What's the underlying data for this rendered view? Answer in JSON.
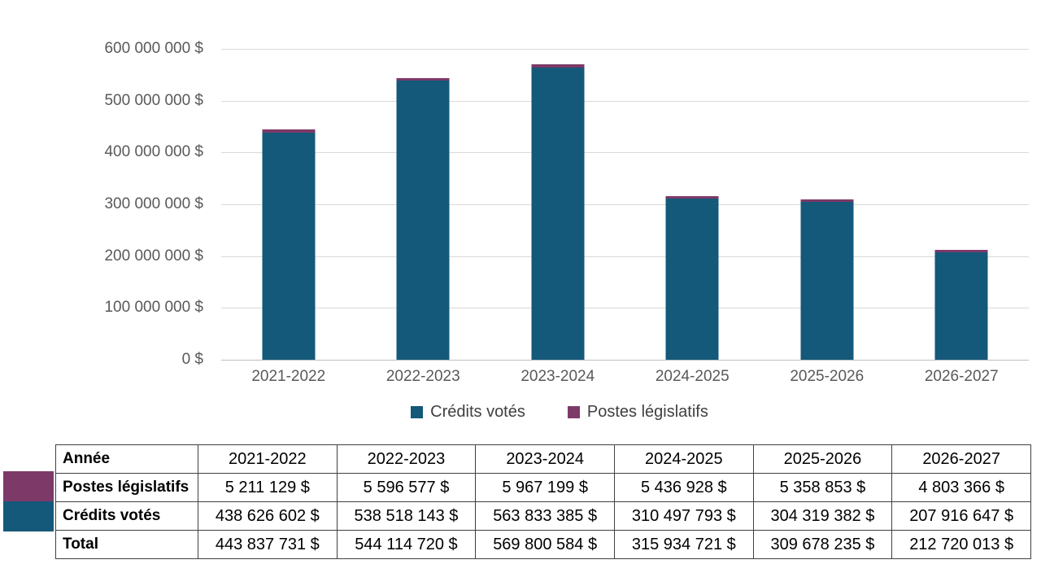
{
  "chart_data": {
    "type": "bar",
    "stacked": true,
    "categories": [
      "2021-2022",
      "2022-2023",
      "2023-2024",
      "2024-2025",
      "2025-2026",
      "2026-2027"
    ],
    "series": [
      {
        "name": "Crédits votés",
        "color": "#14587A",
        "values": [
          438626602,
          538518143,
          563833385,
          310497793,
          304319382,
          207916647
        ]
      },
      {
        "name": "Postes législatifs",
        "color": "#7D3A68",
        "values": [
          5211129,
          5596577,
          5967199,
          5436928,
          5358853,
          4803366
        ]
      }
    ],
    "totals": [
      443837731,
      544114720,
      569800584,
      315934721,
      309678235,
      212720013
    ],
    "ylim": [
      0,
      600000000
    ],
    "ytick_step": 100000000,
    "ytick_labels": [
      "0 $",
      "100 000 000 $",
      "200 000 000 $",
      "300 000 000 $",
      "400 000 000 $",
      "500 000 000 $",
      "600 000 000 $"
    ],
    "grid": true,
    "legend_position": "bottom"
  },
  "table": {
    "header_label": "Année",
    "years": [
      "2021-2022",
      "2022-2023",
      "2023-2024",
      "2024-2025",
      "2025-2026",
      "2026-2027"
    ],
    "rows": [
      {
        "label": "Postes législatifs",
        "swatch": "#7D3A68",
        "values": [
          "5 211 129 $",
          "5 596 577 $",
          "5 967 199 $",
          "5 436 928 $",
          "5 358 853 $",
          "4 803 366 $"
        ]
      },
      {
        "label": "Crédits votés",
        "swatch": "#14587A",
        "values": [
          "438 626 602 $",
          "538 518 143 $",
          "563 833 385 $",
          "310 497 793 $",
          "304 319 382 $",
          "207 916 647 $"
        ]
      },
      {
        "label": "Total",
        "swatch": null,
        "values": [
          "443 837 731 $",
          "544 114 720 $",
          "569 800 584 $",
          "315 934 721 $",
          "309 678 235 $",
          "212 720 013 $"
        ]
      }
    ]
  },
  "colors": {
    "credits_votes": "#14587A",
    "postes_legislatifs": "#7D3A68",
    "axis_text": "#595959",
    "gridline": "#D9D9D9",
    "table_border": "#404040"
  }
}
